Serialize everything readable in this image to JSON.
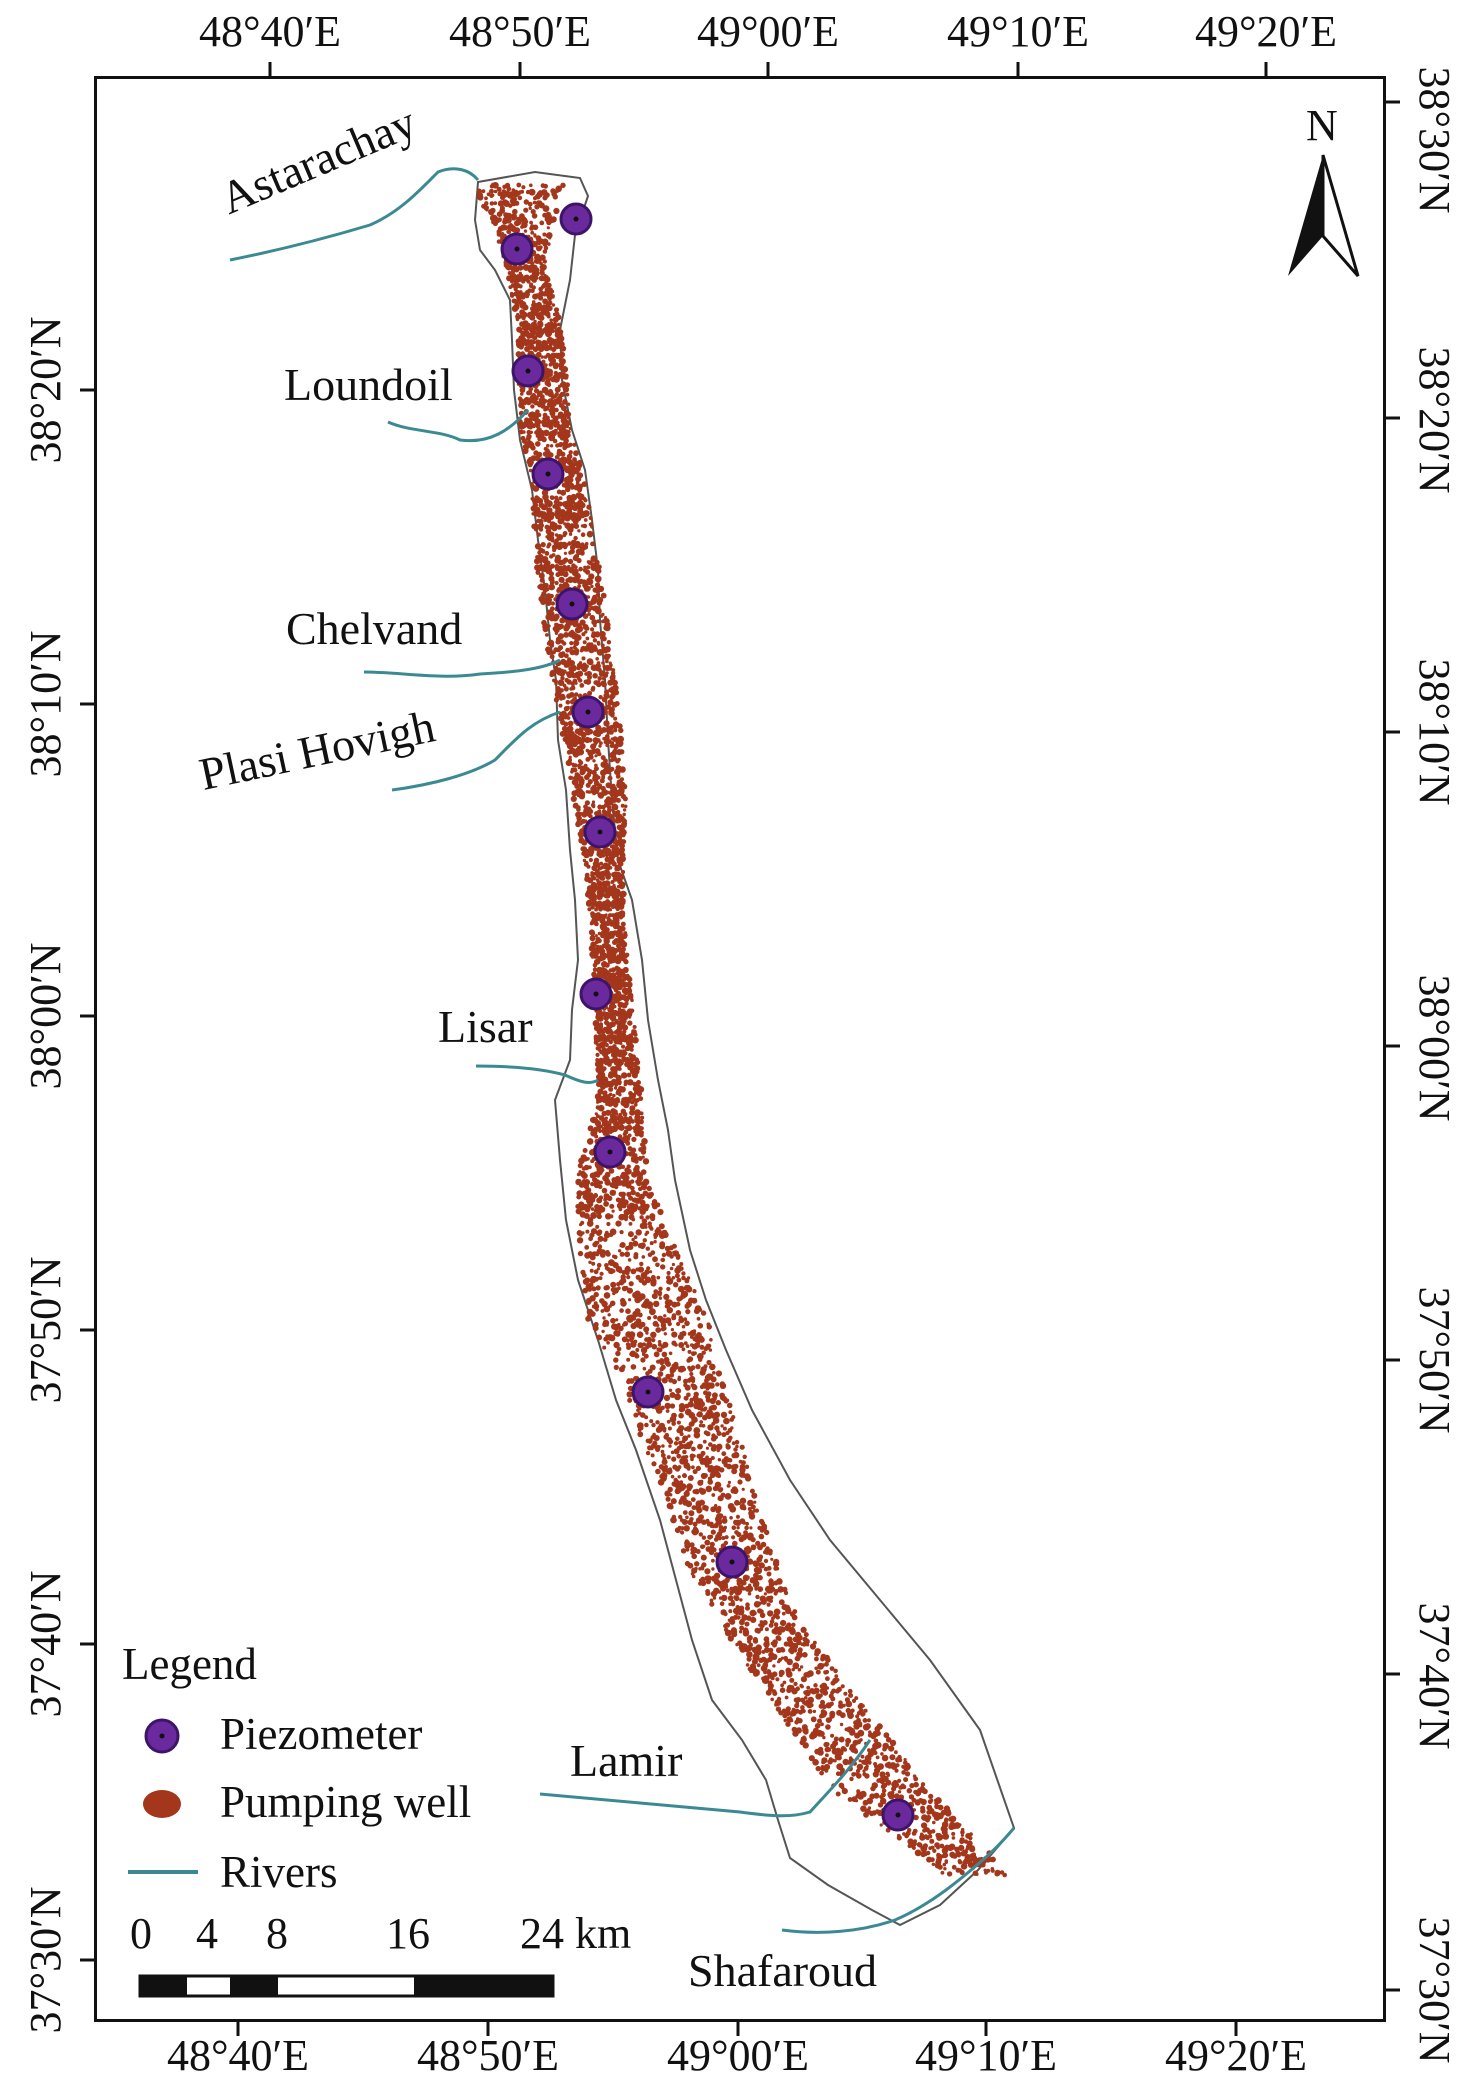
{
  "map": {
    "top_axis": [
      "48°40′E",
      "48°50′E",
      "49°00′E",
      "49°10′E",
      "49°20′E"
    ],
    "bottom_axis": [
      "48°40′E",
      "48°50′E",
      "49°00′E",
      "49°10′E",
      "49°20′E"
    ],
    "left_axis": [
      "38°20′N",
      "38°10′N",
      "38°00′N",
      "37°50′N",
      "37°40′N",
      "37°30′N"
    ],
    "right_axis": [
      "38°30′N",
      "38°20′N",
      "38°10′N",
      "38°00′N",
      "37°50′N",
      "37°40′N",
      "37°30′N"
    ],
    "north_label": "N",
    "rivers": [
      "Astarachay",
      "Loundoil",
      "Chelvand",
      "Plasi Hovigh",
      "Lisar",
      "Lamir",
      "Shafaroud"
    ],
    "piezometer_count": 12,
    "colors": {
      "piezometer": "#6a2a9e",
      "pumping_well": "#a3361b",
      "river": "#3b8a93",
      "coast": "#444444"
    }
  },
  "legend": {
    "title": "Legend",
    "items": [
      "Piezometer",
      "Pumping well",
      "Rivers"
    ]
  },
  "scale_bar": {
    "labels": [
      "0",
      "4",
      "8",
      "16",
      "24 km"
    ]
  }
}
